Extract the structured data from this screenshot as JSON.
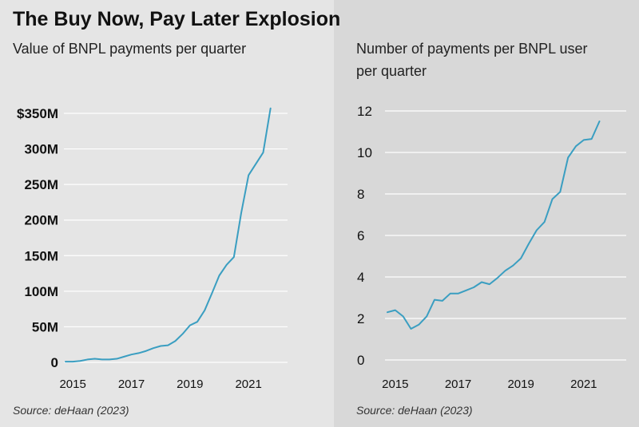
{
  "title": "The Buy Now, Pay Later Explosion",
  "colors": {
    "line": "#3a9ec1",
    "panel_left_bg": "#e5e5e5",
    "panel_right_bg": "#d8d8d8",
    "gridline": "#ffffff"
  },
  "chart_data": [
    {
      "type": "line",
      "title": "Value of BNPL payments per quarter",
      "xlabel": "",
      "ylabel": "",
      "source": "Source: deHaan (2023)",
      "xlim": [
        2014.75,
        2022.25
      ],
      "ylim": [
        0,
        350
      ],
      "yticks": [
        {
          "value": 0,
          "label": "0"
        },
        {
          "value": 50,
          "label": "50M"
        },
        {
          "value": 100,
          "label": "100M"
        },
        {
          "value": 150,
          "label": "150M"
        },
        {
          "value": 200,
          "label": "200M"
        },
        {
          "value": 250,
          "label": "250M"
        },
        {
          "value": 300,
          "label": "300M"
        },
        {
          "value": 350,
          "label": "$350M"
        }
      ],
      "xticks": [
        {
          "value": 2015,
          "label": "2015"
        },
        {
          "value": 2017,
          "label": "2017"
        },
        {
          "value": 2019,
          "label": "2019"
        },
        {
          "value": 2021,
          "label": "2021"
        }
      ],
      "series": [
        {
          "name": "Value of BNPL payments (USD millions)",
          "x": [
            2014.75,
            2015.0,
            2015.25,
            2015.5,
            2015.75,
            2016.0,
            2016.25,
            2016.5,
            2016.75,
            2017.0,
            2017.25,
            2017.5,
            2017.75,
            2018.0,
            2018.25,
            2018.5,
            2018.75,
            2019.0,
            2019.25,
            2019.5,
            2019.75,
            2020.0,
            2020.25,
            2020.5,
            2020.75,
            2021.0,
            2021.25,
            2021.5,
            2021.75,
            2022.0,
            2022.25
          ],
          "values": [
            1,
            1,
            2,
            4,
            5,
            4,
            4,
            5,
            8,
            11,
            13,
            16,
            20,
            23,
            24,
            30,
            40,
            52,
            57,
            73,
            97,
            122,
            137,
            148,
            210,
            263,
            279,
            295,
            357,
            null,
            null
          ]
        }
      ]
    },
    {
      "type": "line",
      "title": "Number of payments per BNPL user per quarter",
      "xlabel": "",
      "ylabel": "",
      "source": "Source: deHaan (2023)",
      "xlim": [
        2014.75,
        2022.25
      ],
      "ylim": [
        0,
        12
      ],
      "yticks": [
        {
          "value": 0,
          "label": "0"
        },
        {
          "value": 2,
          "label": "2"
        },
        {
          "value": 4,
          "label": "4"
        },
        {
          "value": 6,
          "label": "6"
        },
        {
          "value": 8,
          "label": "8"
        },
        {
          "value": 10,
          "label": "10"
        },
        {
          "value": 12,
          "label": "12"
        }
      ],
      "xticks": [
        {
          "value": 2015,
          "label": "2015"
        },
        {
          "value": 2017,
          "label": "2017"
        },
        {
          "value": 2019,
          "label": "2019"
        },
        {
          "value": 2021,
          "label": "2021"
        }
      ],
      "series": [
        {
          "name": "Payments per BNPL user",
          "x": [
            2014.75,
            2015.0,
            2015.25,
            2015.5,
            2015.75,
            2016.0,
            2016.25,
            2016.5,
            2016.75,
            2017.0,
            2017.25,
            2017.5,
            2017.75,
            2018.0,
            2018.25,
            2018.5,
            2018.75,
            2019.0,
            2019.25,
            2019.5,
            2019.75,
            2020.0,
            2020.25,
            2020.5,
            2020.75,
            2021.0,
            2021.25,
            2021.5,
            2021.75,
            2022.0
          ],
          "values": [
            2.3,
            2.4,
            2.1,
            1.5,
            1.7,
            2.1,
            2.9,
            2.85,
            3.2,
            3.2,
            3.35,
            3.5,
            3.75,
            3.65,
            3.95,
            4.3,
            4.55,
            4.9,
            5.6,
            6.25,
            6.65,
            7.75,
            8.1,
            9.75,
            10.3,
            10.6,
            10.65,
            11.5,
            null,
            null
          ]
        }
      ]
    }
  ]
}
